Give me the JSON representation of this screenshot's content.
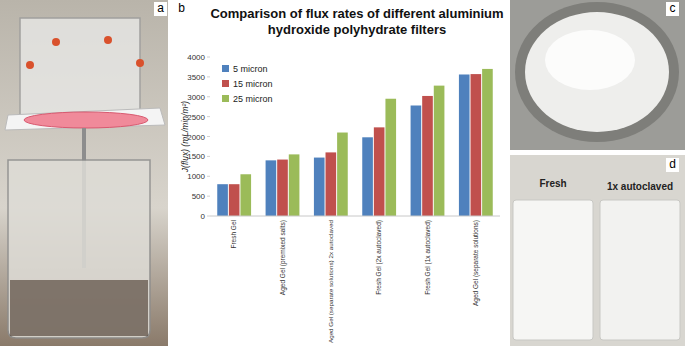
{
  "chart_data": {
    "type": "bar",
    "title": "Comparison of flux rates of different aluminium hydroxide polyhydrate filters",
    "y_label": "J(flux) (mL/min/m²)",
    "categories": [
      "Fresh Gel",
      "Aged Gel (premixed salts)",
      "Aged Gel (separate solutions) 2x autoclaved",
      "Fresh Gel (2x autoclaved)",
      "Fresh Gel (1x autoclaved)",
      "Aged Gel (separate solutions)"
    ],
    "series": [
      {
        "name": "5 micron",
        "color": "#4f81bd",
        "values": [
          800,
          1400,
          1470,
          1980,
          2780,
          3560
        ]
      },
      {
        "name": "15 micron",
        "color": "#c0504d",
        "values": [
          800,
          1420,
          1600,
          2230,
          3020,
          3570
        ]
      },
      {
        "name": "25 micron",
        "color": "#9bbb59",
        "values": [
          1050,
          1550,
          2100,
          2950,
          3280,
          3700
        ]
      }
    ],
    "ylim": [
      0,
      4000
    ],
    "yticks": [
      0,
      500,
      1000,
      1500,
      2000,
      2500,
      3000,
      3500,
      4000
    ],
    "grid": false,
    "legend": "upper-left"
  },
  "panel_labels": [
    "a",
    "b",
    "c",
    "d"
  ],
  "photo_captions": [
    "Fresh",
    "1x autoclaved"
  ]
}
